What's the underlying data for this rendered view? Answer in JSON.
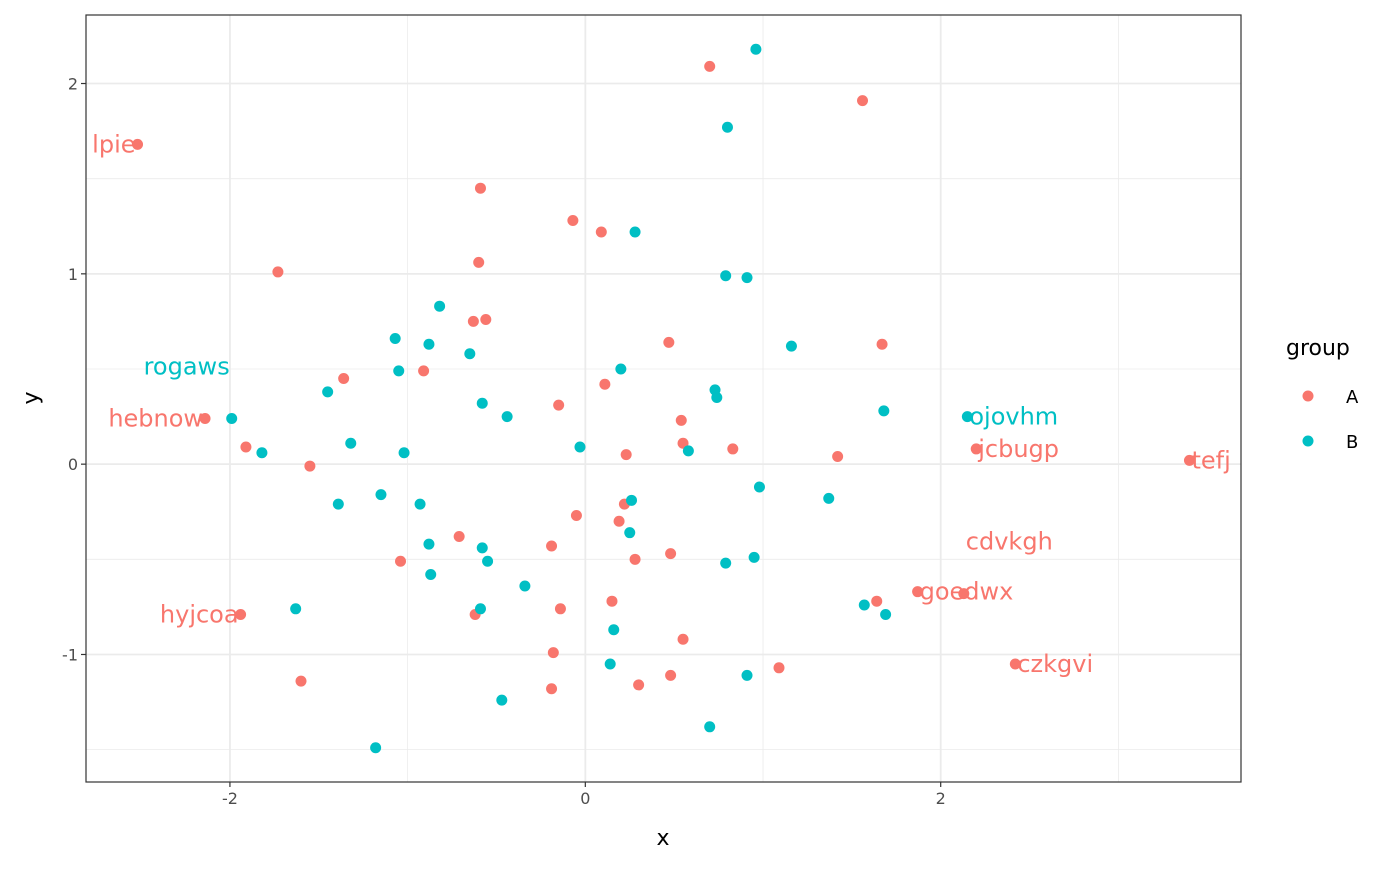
{
  "chart_data": {
    "type": "scatter",
    "xlabel": "x",
    "ylabel": "y",
    "xlim": [
      -2.81,
      3.69
    ],
    "ylim": [
      -1.67,
      2.36
    ],
    "x_ticks": [
      -2,
      0,
      2
    ],
    "y_ticks": [
      -1,
      0,
      1,
      2
    ],
    "x_tick_labels": [
      "-2",
      "0",
      "2"
    ],
    "y_tick_labels": [
      "-1",
      "0",
      "1",
      "2"
    ],
    "grid": true,
    "legend": {
      "title": "group",
      "position": "right",
      "entries": [
        "A",
        "B"
      ]
    },
    "colors": {
      "A": "#F8766D",
      "B": "#00BFC4"
    },
    "series": [
      {
        "name": "A",
        "points": [
          [
            0.7,
            2.09
          ],
          [
            1.56,
            1.91
          ],
          [
            -2.52,
            1.68,
            "lpie"
          ],
          [
            -0.59,
            1.45
          ],
          [
            -0.07,
            1.28
          ],
          [
            0.09,
            1.22
          ],
          [
            -1.73,
            1.01
          ],
          [
            -0.6,
            1.06
          ],
          [
            -0.63,
            0.75
          ],
          [
            -0.56,
            0.76
          ],
          [
            0.47,
            0.64
          ],
          [
            1.67,
            0.63
          ],
          [
            -1.36,
            0.45
          ],
          [
            -0.91,
            0.49
          ],
          [
            0.11,
            0.42
          ],
          [
            -0.15,
            0.31
          ],
          [
            0.54,
            0.23
          ],
          [
            -2.14,
            0.24,
            "hebnow"
          ],
          [
            -1.91,
            0.09
          ],
          [
            -1.55,
            -0.01
          ],
          [
            0.55,
            0.11
          ],
          [
            0.23,
            0.05
          ],
          [
            0.83,
            0.08
          ],
          [
            1.42,
            0.04
          ],
          [
            2.2,
            0.08,
            "jcbugp"
          ],
          [
            3.4,
            0.02,
            "tefj"
          ],
          [
            -0.05,
            -0.27
          ],
          [
            0.22,
            -0.21
          ],
          [
            0.19,
            -0.3
          ],
          [
            -0.71,
            -0.38
          ],
          [
            -0.19,
            -0.43
          ],
          [
            -1.04,
            -0.51
          ],
          [
            0.48,
            -0.47
          ],
          [
            0.28,
            -0.5
          ],
          [
            -1.94,
            -0.79,
            "hyjcoa"
          ],
          [
            -0.62,
            -0.79
          ],
          [
            -0.14,
            -0.76
          ],
          [
            0.15,
            -0.72
          ],
          [
            1.64,
            -0.72
          ],
          [
            1.87,
            -0.67,
            "goedwx"
          ],
          [
            2.13,
            -0.68,
            "cdvkgh"
          ],
          [
            0.55,
            -0.92
          ],
          [
            -0.18,
            -0.99
          ],
          [
            -1.6,
            -1.14
          ],
          [
            -0.19,
            -1.18
          ],
          [
            0.3,
            -1.16
          ],
          [
            0.48,
            -1.11
          ],
          [
            1.09,
            -1.07
          ],
          [
            2.42,
            -1.05,
            "czkgvi"
          ]
        ]
      },
      {
        "name": "B",
        "points": [
          [
            0.96,
            2.18
          ],
          [
            0.8,
            1.77
          ],
          [
            0.28,
            1.22
          ],
          [
            0.79,
            0.99
          ],
          [
            0.91,
            0.98
          ],
          [
            -0.82,
            0.83
          ],
          [
            -1.07,
            0.66
          ],
          [
            -0.88,
            0.63
          ],
          [
            -1.05,
            0.49
          ],
          [
            -0.65,
            0.58
          ],
          [
            1.16,
            0.62
          ],
          [
            0.2,
            0.5
          ],
          [
            0.73,
            0.39
          ],
          [
            0.74,
            0.35
          ],
          [
            -1.45,
            0.38
          ],
          [
            -0.58,
            0.32
          ],
          [
            -0.44,
            0.25
          ],
          [
            1.68,
            0.28
          ],
          [
            2.15,
            0.25,
            "ojovhm"
          ],
          [
            -1.99,
            0.24,
            "rogaws"
          ],
          [
            -1.32,
            0.11
          ],
          [
            -1.02,
            0.06
          ],
          [
            -1.82,
            0.06
          ],
          [
            -0.03,
            0.09
          ],
          [
            0.58,
            0.07
          ],
          [
            0.98,
            -0.12
          ],
          [
            1.37,
            -0.18
          ],
          [
            -1.15,
            -0.16
          ],
          [
            -1.39,
            -0.21
          ],
          [
            -0.93,
            -0.21
          ],
          [
            0.26,
            -0.19
          ],
          [
            0.25,
            -0.36
          ],
          [
            -0.88,
            -0.42
          ],
          [
            -0.58,
            -0.44
          ],
          [
            -0.55,
            -0.51
          ],
          [
            0.95,
            -0.49
          ],
          [
            0.79,
            -0.52
          ],
          [
            -0.87,
            -0.58
          ],
          [
            -0.34,
            -0.64
          ],
          [
            1.57,
            -0.74
          ],
          [
            1.69,
            -0.79
          ],
          [
            -1.63,
            -0.76
          ],
          [
            -0.59,
            -0.76
          ],
          [
            0.16,
            -0.87
          ],
          [
            0.14,
            -1.05
          ],
          [
            0.91,
            -1.11
          ],
          [
            -0.47,
            -1.24
          ],
          [
            0.7,
            -1.38
          ],
          [
            -1.18,
            -1.49
          ]
        ]
      }
    ]
  }
}
